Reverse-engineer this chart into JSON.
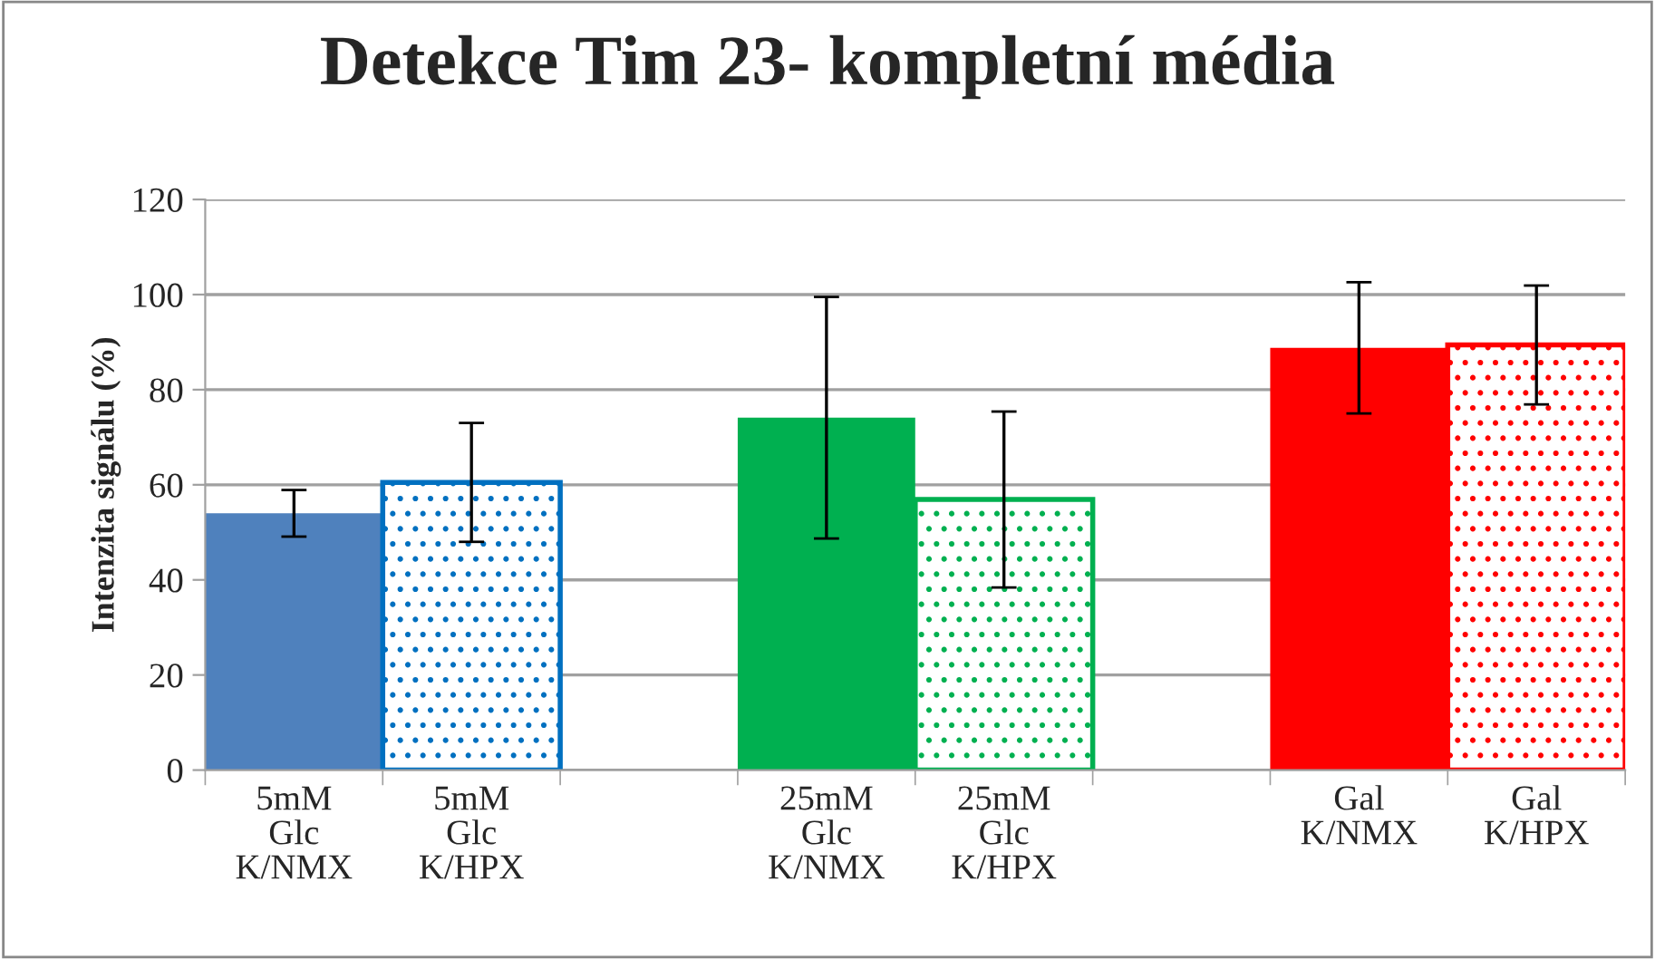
{
  "chart_data": {
    "type": "bar",
    "title": "Detekce Tim 23- kompletní média",
    "ylabel": "Intenzita signálu (%)",
    "categories": [
      "5mM\nGlc\nK/NMX",
      "5mM\nGlc\nK/HPX",
      null,
      "25mM\nGlc\nK/NMX",
      "25mM\nGlc\nK/HPX",
      null,
      "Gal\nK/NMX",
      "Gal\nK/HPX"
    ],
    "series": [
      {
        "colors": [
          "#4f81bd",
          null,
          null,
          "#00b050",
          null,
          null,
          "#ff0000",
          null
        ],
        "values": [
          54.0,
          null,
          null,
          74.1,
          null,
          null,
          88.8,
          null
        ],
        "errors": [
          4.9,
          null,
          null,
          25.4,
          null,
          null,
          13.8,
          null
        ]
      },
      {
        "colors": [
          null,
          "#0070c0",
          null,
          null,
          "#00b050",
          null,
          null,
          "#ff0000"
        ],
        "values": [
          null,
          60.5,
          null,
          null,
          56.9,
          null,
          null,
          89.4
        ],
        "errors": [
          null,
          12.5,
          null,
          null,
          18.5,
          null,
          null,
          12.5
        ]
      }
    ],
    "ylim": [
      0,
      120
    ],
    "yticks": [
      0,
      20,
      40,
      60,
      80,
      100,
      120
    ],
    "grid": "y",
    "legend": false
  }
}
